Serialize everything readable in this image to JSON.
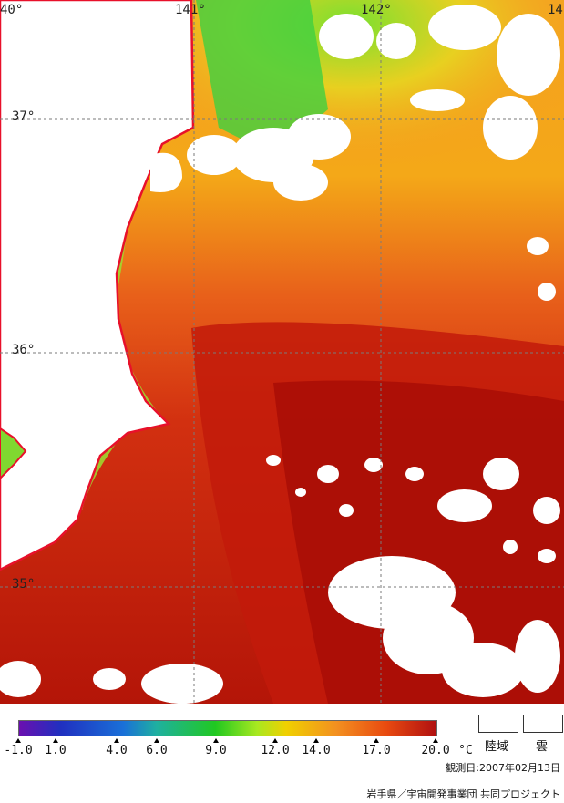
{
  "map": {
    "lon_labels": [
      "40°",
      "141°",
      "142°",
      "14"
    ],
    "lat_labels": [
      "37°",
      "36°",
      "35°"
    ]
  },
  "legend": {
    "ticks": [
      "-1.0",
      "1.0",
      "4.0",
      "6.0",
      "9.0",
      "12.0",
      "14.0",
      "17.0",
      "20.0"
    ],
    "unit": "°C",
    "land_label": "陸域",
    "cloud_label": "雲",
    "colors": [
      "#6a0fb0",
      "#2030c0",
      "#1a70d8",
      "#1fb0a0",
      "#20c820",
      "#a8e820",
      "#f0d000",
      "#f39020",
      "#e84a10",
      "#b01010"
    ]
  },
  "footer": {
    "date": "観測日:2007年02月13日",
    "credit": "岩手県／宇宙開発事業団 共同プロジェクト"
  }
}
